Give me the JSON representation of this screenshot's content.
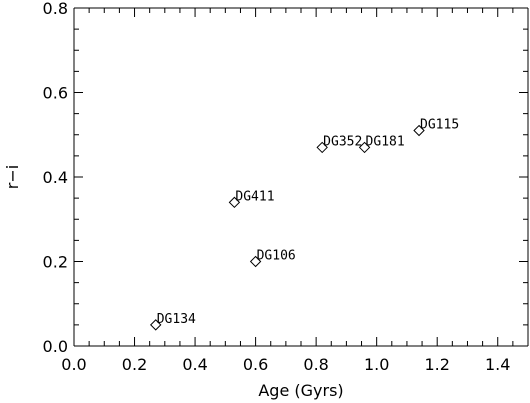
{
  "chart_data": {
    "type": "scatter",
    "title": "",
    "xlabel": "Age (Gyrs)",
    "ylabel": "r−i",
    "xlim": [
      0.0,
      1.5
    ],
    "ylim": [
      0.0,
      0.8
    ],
    "xticks": [
      {
        "value": 0.0,
        "label": "0.0"
      },
      {
        "value": 0.2,
        "label": "0.2"
      },
      {
        "value": 0.4,
        "label": "0.4"
      },
      {
        "value": 0.6,
        "label": "0.6"
      },
      {
        "value": 0.8,
        "label": "0.8"
      },
      {
        "value": 1.0,
        "label": "1.0"
      },
      {
        "value": 1.2,
        "label": "1.2"
      },
      {
        "value": 1.4,
        "label": "1.4"
      }
    ],
    "yticks": [
      {
        "value": 0.0,
        "label": "0.0"
      },
      {
        "value": 0.2,
        "label": "0.2"
      },
      {
        "value": 0.4,
        "label": "0.4"
      },
      {
        "value": 0.6,
        "label": "0.6"
      },
      {
        "value": 0.8,
        "label": "0.8"
      }
    ],
    "x_minor_step": 0.05,
    "y_minor_step": 0.05,
    "grid": false,
    "marker": "open-diamond",
    "points": [
      {
        "label": "DG134",
        "x": 0.27,
        "y": 0.05
      },
      {
        "label": "DG411",
        "x": 0.53,
        "y": 0.34
      },
      {
        "label": "DG106",
        "x": 0.6,
        "y": 0.2
      },
      {
        "label": "DG352",
        "x": 0.82,
        "y": 0.47
      },
      {
        "label": "DG181",
        "x": 0.96,
        "y": 0.47
      },
      {
        "label": "DG115",
        "x": 1.14,
        "y": 0.51
      }
    ]
  }
}
